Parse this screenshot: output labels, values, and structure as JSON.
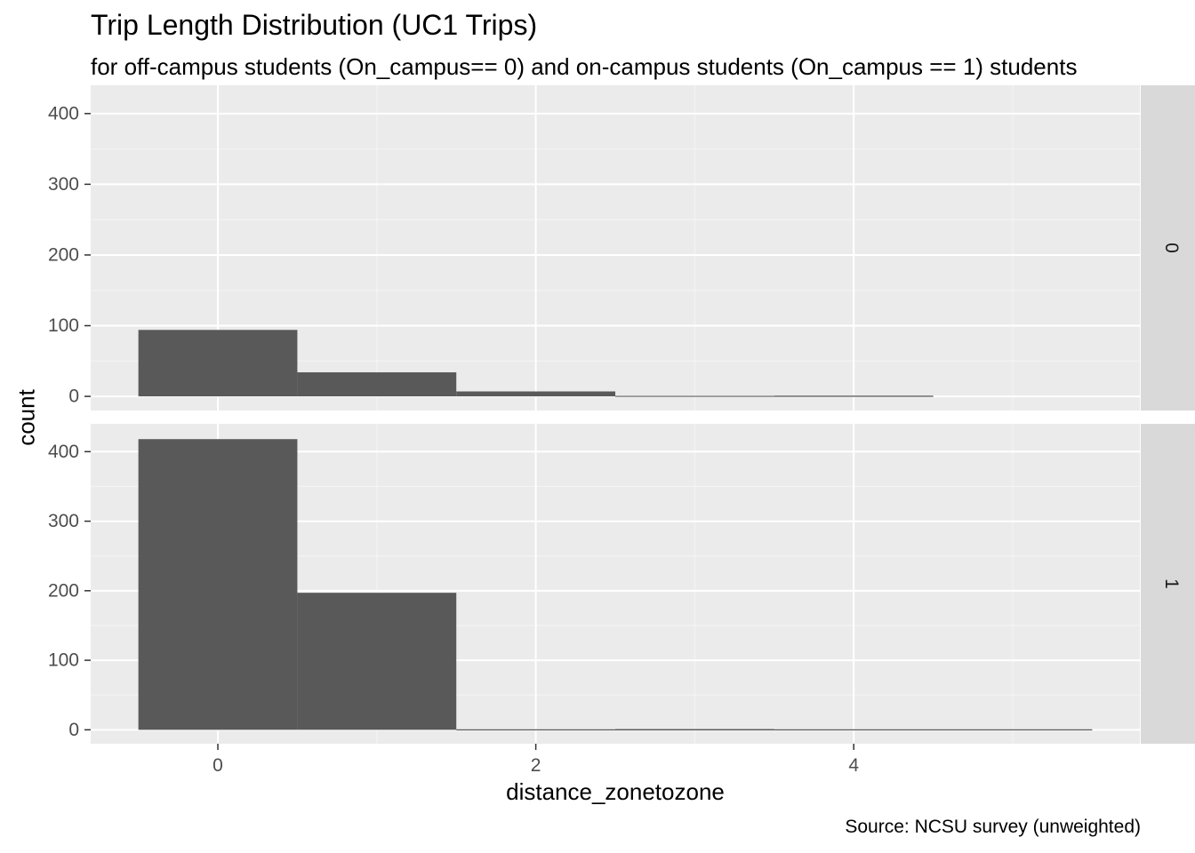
{
  "chart_data": {
    "type": "bar",
    "title": "Trip Length Distribution (UC1 Trips)",
    "subtitle": "for off-campus students (On_campus== 0) and on-campus students (On_campus == 1) students",
    "caption": "Source: NCSU survey (unweighted)",
    "xlabel": "distance_zonetozone",
    "ylabel": "count",
    "x_ticks": [
      0,
      2,
      4
    ],
    "y_ticks": [
      0,
      100,
      200,
      300,
      400
    ],
    "xlim": [
      -0.8,
      5.8
    ],
    "ylim": [
      -20,
      440
    ],
    "grid": true,
    "facets": [
      {
        "strip_label": "0",
        "bins": [
          {
            "x0": -0.5,
            "x1": 0.5,
            "count": 94
          },
          {
            "x0": 0.5,
            "x1": 1.5,
            "count": 34
          },
          {
            "x0": 1.5,
            "x1": 2.5,
            "count": 7
          },
          {
            "x0": 2.5,
            "x1": 3.5,
            "count": 0
          },
          {
            "x0": 3.5,
            "x1": 4.5,
            "count": 1
          }
        ]
      },
      {
        "strip_label": "1",
        "bins": [
          {
            "x0": -0.5,
            "x1": 0.5,
            "count": 418
          },
          {
            "x0": 0.5,
            "x1": 1.5,
            "count": 197
          },
          {
            "x0": 1.5,
            "x1": 2.5,
            "count": 0
          },
          {
            "x0": 2.5,
            "x1": 3.5,
            "count": 1
          },
          {
            "x0": 3.5,
            "x1": 4.5,
            "count": 0
          },
          {
            "x0": 4.5,
            "x1": 5.5,
            "count": 0
          }
        ]
      }
    ],
    "colors": {
      "bar": "#595959",
      "panel_bg": "#ebebeb",
      "strip_bg": "#d9d9d9",
      "grid_major": "#ffffff",
      "grid_minor": "#f5f5f5",
      "tick_text": "#4d4d4d",
      "strip_text": "#1a1a1a"
    }
  }
}
